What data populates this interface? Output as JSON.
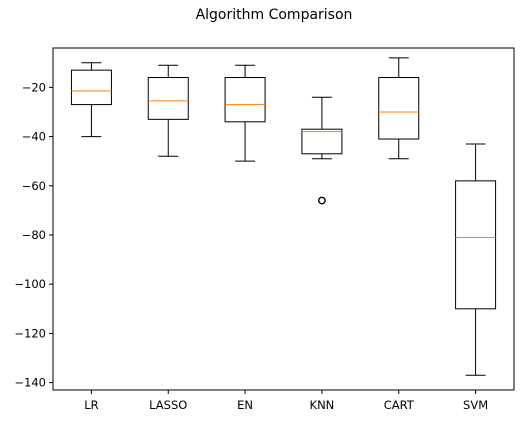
{
  "chart_data": {
    "type": "box",
    "title": "Algorithm Comparison",
    "xlabel": "",
    "ylabel": "",
    "categories": [
      "LR",
      "LASSO",
      "EN",
      "KNN",
      "CART",
      "SVM"
    ],
    "boxes": [
      {
        "label": "LR",
        "whisker_low": -40,
        "q1": -27,
        "median": -21.5,
        "q3": -13,
        "whisker_high": -10,
        "outliers": []
      },
      {
        "label": "LASSO",
        "whisker_low": -48,
        "q1": -33,
        "median": -25.5,
        "q3": -16,
        "whisker_high": -11,
        "outliers": []
      },
      {
        "label": "EN",
        "whisker_low": -50,
        "q1": -34,
        "median": -27,
        "q3": -16,
        "whisker_high": -11,
        "outliers": []
      },
      {
        "label": "KNN",
        "whisker_low": -49,
        "q1": -47,
        "median": -38,
        "q3": -37,
        "whisker_high": -24,
        "outliers": [
          -66
        ]
      },
      {
        "label": "CART",
        "whisker_low": -49,
        "q1": -41,
        "median": -30,
        "q3": -16,
        "whisker_high": -8,
        "outliers": []
      },
      {
        "label": "SVM",
        "whisker_low": -137,
        "q1": -110,
        "median": -81,
        "q3": -58,
        "whisker_high": -43,
        "outliers": []
      }
    ],
    "yticks": [
      -20,
      -40,
      -60,
      -80,
      -100,
      -120,
      -140
    ],
    "ytick_labels": [
      "−20",
      "−40",
      "−60",
      "−80",
      "−100",
      "−120",
      "−140"
    ],
    "ylim": [
      -143,
      -4
    ],
    "grid": false,
    "legend": "none",
    "colors": {
      "box": "#000000",
      "median": "#ff7f0e",
      "axes": "#000000",
      "background": "#ffffff"
    }
  }
}
